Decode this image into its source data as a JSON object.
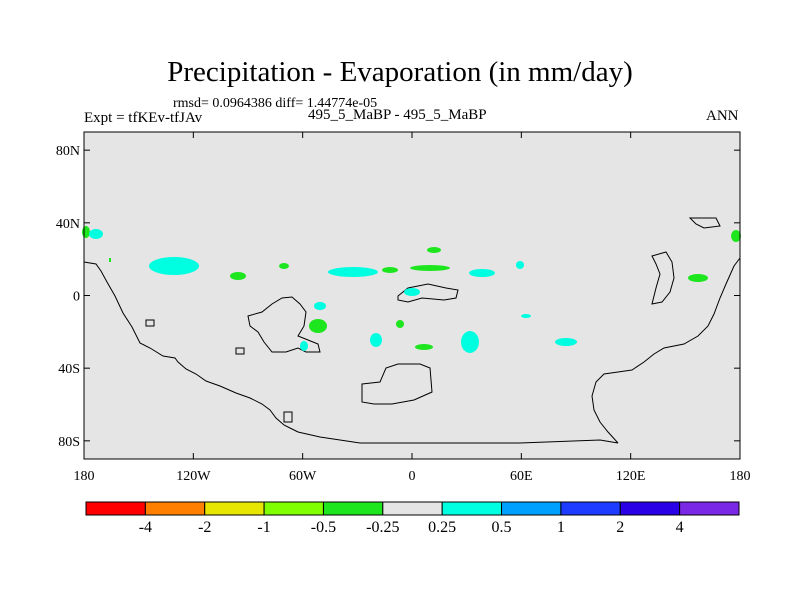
{
  "title": "Precipitation - Evaporation (in mm/day)",
  "stats": "rmsd= 0.0964386 diff= 1.44774e-05",
  "left_label": "Expt = tfKEv-tfJAv",
  "center_label": "495_5_MaBP - 495_5_MaBP",
  "right_label": "ANN",
  "map": {
    "lon_range": [
      -180,
      180
    ],
    "lat_range": [
      -90,
      90
    ],
    "background_color": "#e5e5e5",
    "lon_ticks": [
      {
        "value": -180,
        "label": "180"
      },
      {
        "value": -120,
        "label": "120W"
      },
      {
        "value": -60,
        "label": "60W"
      },
      {
        "value": 0,
        "label": "0"
      },
      {
        "value": 60,
        "label": "60E"
      },
      {
        "value": 120,
        "label": "120E"
      },
      {
        "value": 180,
        "label": "180"
      }
    ],
    "lat_ticks": [
      {
        "value": 80,
        "label": "80N"
      },
      {
        "value": 40,
        "label": "40N"
      },
      {
        "value": 0,
        "label": "0"
      },
      {
        "value": -40,
        "label": "40S"
      },
      {
        "value": -80,
        "label": "80S"
      }
    ]
  },
  "colorbar": {
    "colors": [
      "#ff0000",
      "#ff8000",
      "#e6e600",
      "#80ff00",
      "#1ee61e",
      "#e5e5e5",
      "#00ffe1",
      "#00a0ff",
      "#1e3cff",
      "#2a00e6",
      "#7a28e6"
    ],
    "labels": [
      "-4",
      "-2",
      "-1",
      "-0.5",
      "-0.25",
      "0.25",
      "0.5",
      "1",
      "2",
      "4"
    ]
  }
}
